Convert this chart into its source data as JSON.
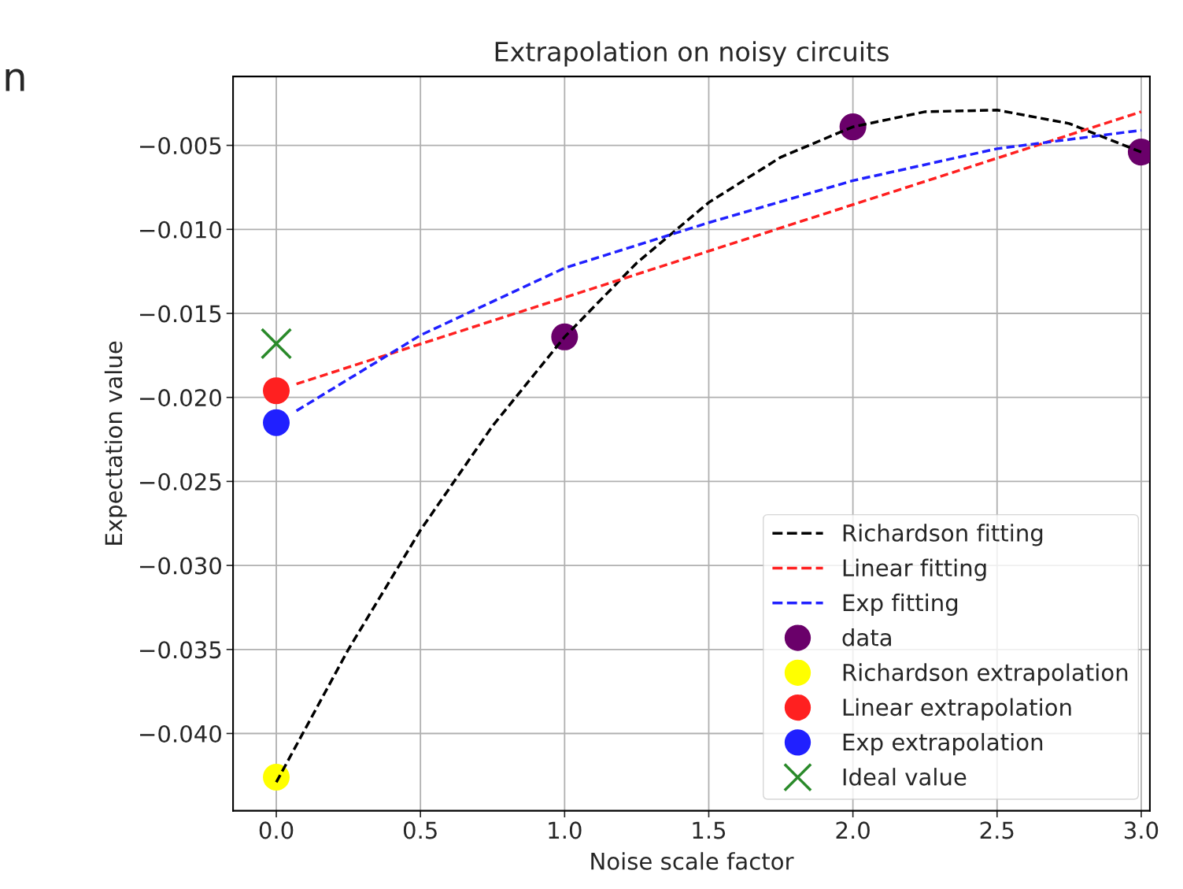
{
  "chart_data": {
    "type": "line",
    "title": "Extrapolation on noisy circuits",
    "xlabel": "Noise scale factor",
    "ylabel": "Expectation value",
    "annotations": [
      "n"
    ],
    "xlim": [
      -0.15,
      3.03
    ],
    "xticks": [
      {
        "value": 0,
        "label": "0.0"
      },
      {
        "value": 0.5,
        "label": "0.5"
      },
      {
        "value": 1,
        "label": "1.0"
      },
      {
        "value": 1.5,
        "label": "1.5"
      },
      {
        "value": 2,
        "label": "2.0"
      },
      {
        "value": 2.5,
        "label": "2.5"
      },
      {
        "value": 3,
        "label": "3.0"
      }
    ],
    "ylim": [
      -0.0446,
      -0.0009
    ],
    "yticks": [
      {
        "value": -0.04,
        "label": "−0.040"
      },
      {
        "value": -0.035,
        "label": "−0.035"
      },
      {
        "value": -0.03,
        "label": "−0.030"
      },
      {
        "value": -0.025,
        "label": "−0.025"
      },
      {
        "value": -0.02,
        "label": "−0.020"
      },
      {
        "value": -0.015,
        "label": "−0.015"
      },
      {
        "value": -0.01,
        "label": "−0.010"
      },
      {
        "value": -0.005,
        "label": "−0.005"
      }
    ],
    "grid": true,
    "legend": "bottom right",
    "series": [
      {
        "name": "Richardson fitting",
        "line_style": "dashed",
        "color": "#000000",
        "x": [
          0,
          0.25,
          0.5,
          0.75,
          1,
          1.25,
          1.5,
          1.75,
          2,
          2.25,
          2.5,
          2.75,
          3
        ],
        "values": [
          -0.0429,
          -0.035,
          -0.0279,
          -0.0217,
          -0.0164,
          -0.012,
          -0.0084,
          -0.0057,
          -0.0039,
          -0.003,
          -0.0029,
          -0.0037,
          -0.0054
        ]
      },
      {
        "name": "Linear fitting",
        "line_style": "dashed",
        "color": "#ff2020",
        "x": [
          0.07,
          3
        ],
        "values": [
          -0.0192,
          -0.003
        ]
      },
      {
        "name": "Exp fitting",
        "line_style": "dashed",
        "color": "#2020ff",
        "x": [
          0.07,
          0.5,
          1,
          1.5,
          2,
          2.5,
          3
        ],
        "values": [
          -0.0208,
          -0.0163,
          -0.0123,
          -0.0096,
          -0.0071,
          -0.0052,
          -0.0041
        ]
      },
      {
        "name": "data",
        "type": "scatter",
        "marker": "circle",
        "color": "#6a006a",
        "x": [
          1,
          2,
          3
        ],
        "values": [
          -0.0164,
          -0.0039,
          -0.0054
        ]
      },
      {
        "name": "Richardson extrapolation",
        "type": "scatter",
        "marker": "circle",
        "color": "#ffff00",
        "x": [
          0
        ],
        "values": [
          -0.0426
        ]
      },
      {
        "name": "Linear extrapolation",
        "type": "scatter",
        "marker": "circle",
        "color": "#ff2020",
        "x": [
          0
        ],
        "values": [
          -0.0196
        ]
      },
      {
        "name": "Exp extrapolation",
        "type": "scatter",
        "marker": "circle",
        "color": "#2020ff",
        "x": [
          0
        ],
        "values": [
          -0.0215
        ]
      },
      {
        "name": "Ideal value",
        "type": "scatter",
        "marker": "cross",
        "color": "#2a8a2a",
        "x": [
          0
        ],
        "values": [
          -0.0168
        ]
      }
    ]
  }
}
